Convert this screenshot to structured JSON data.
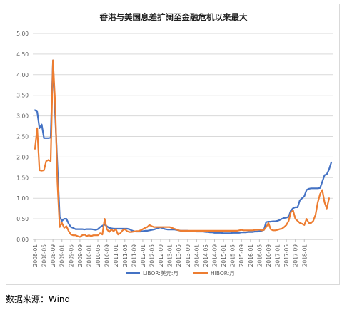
{
  "chart_data": {
    "type": "line",
    "title": "香港与美国息差扩阔至金融危机以来最大",
    "xlabel": "",
    "ylabel": "",
    "ylim": [
      0,
      5
    ],
    "yticks": [
      "0.00",
      "0.50",
      "1.00",
      "1.50",
      "2.00",
      "2.50",
      "3.00",
      "3.50",
      "4.00",
      "4.50",
      "5.00"
    ],
    "xticks": [
      "2008-01",
      "2008-05",
      "2008-09",
      "2009-01",
      "2009-05",
      "2009-09",
      "2010-01",
      "2010-05",
      "2010-09",
      "2011-01",
      "2011-05",
      "2011-09",
      "2012-01",
      "2012-05",
      "2012-09",
      "2013-01",
      "2013-05",
      "2013-09",
      "2014-01",
      "2014-05",
      "2014-09",
      "2015-01",
      "2015-05",
      "2015-09",
      "2016-01",
      "2016-05",
      "2016-09",
      "2017-01",
      "2017-05",
      "2017-09",
      "2018-01"
    ],
    "grid": "horizontal",
    "legend": "bottom",
    "series": [
      {
        "name": "LIBOR:美元:月",
        "color": "#4472c4",
        "values": [
          3.14,
          3.1,
          2.7,
          2.79,
          2.46,
          2.46,
          2.46,
          2.47,
          4.35,
          3.0,
          1.8,
          0.55,
          0.45,
          0.5,
          0.5,
          0.38,
          0.3,
          0.28,
          0.25,
          0.25,
          0.25,
          0.25,
          0.24,
          0.25,
          0.25,
          0.25,
          0.24,
          0.23,
          0.25,
          0.3,
          0.33,
          0.36,
          0.32,
          0.28,
          0.27,
          0.26,
          0.26,
          0.26,
          0.26,
          0.26,
          0.26,
          0.26,
          0.25,
          0.22,
          0.2,
          0.19,
          0.19,
          0.19,
          0.2,
          0.21,
          0.21,
          0.22,
          0.23,
          0.24,
          0.26,
          0.28,
          0.29,
          0.27,
          0.25,
          0.24,
          0.24,
          0.24,
          0.24,
          0.23,
          0.22,
          0.21,
          0.21,
          0.21,
          0.21,
          0.2,
          0.2,
          0.2,
          0.19,
          0.19,
          0.19,
          0.19,
          0.18,
          0.18,
          0.17,
          0.17,
          0.16,
          0.16,
          0.16,
          0.16,
          0.15,
          0.15,
          0.15,
          0.15,
          0.16,
          0.16,
          0.16,
          0.16,
          0.17,
          0.17,
          0.17,
          0.18,
          0.18,
          0.18,
          0.19,
          0.19,
          0.2,
          0.21,
          0.23,
          0.42,
          0.43,
          0.43,
          0.44,
          0.44,
          0.45,
          0.47,
          0.5,
          0.52,
          0.53,
          0.55,
          0.7,
          0.76,
          0.78,
          0.78,
          0.95,
          1.0,
          1.05,
          1.2,
          1.23,
          1.24,
          1.24,
          1.24,
          1.24,
          1.25,
          1.4,
          1.56,
          1.58,
          1.7,
          1.87
        ]
      },
      {
        "name": "HIBOR:月",
        "color": "#ed7d31",
        "values": [
          2.2,
          2.7,
          1.68,
          1.67,
          1.68,
          1.9,
          1.93,
          1.9,
          4.35,
          3.3,
          1.4,
          0.3,
          0.4,
          0.28,
          0.32,
          0.2,
          0.12,
          0.1,
          0.1,
          0.08,
          0.06,
          0.1,
          0.12,
          0.08,
          0.1,
          0.08,
          0.1,
          0.1,
          0.1,
          0.15,
          0.12,
          0.5,
          0.25,
          0.18,
          0.24,
          0.2,
          0.25,
          0.12,
          0.15,
          0.22,
          0.25,
          0.2,
          0.18,
          0.18,
          0.19,
          0.2,
          0.2,
          0.22,
          0.25,
          0.28,
          0.3,
          0.35,
          0.32,
          0.3,
          0.3,
          0.3,
          0.3,
          0.3,
          0.3,
          0.3,
          0.3,
          0.28,
          0.26,
          0.24,
          0.22,
          0.21,
          0.21,
          0.21,
          0.21,
          0.21,
          0.21,
          0.21,
          0.21,
          0.21,
          0.21,
          0.21,
          0.21,
          0.21,
          0.21,
          0.21,
          0.21,
          0.21,
          0.21,
          0.21,
          0.21,
          0.21,
          0.21,
          0.21,
          0.21,
          0.21,
          0.21,
          0.22,
          0.23,
          0.22,
          0.22,
          0.22,
          0.22,
          0.22,
          0.23,
          0.23,
          0.24,
          0.22,
          0.23,
          0.3,
          0.4,
          0.25,
          0.22,
          0.22,
          0.23,
          0.25,
          0.26,
          0.3,
          0.35,
          0.45,
          0.66,
          0.7,
          0.5,
          0.45,
          0.4,
          0.38,
          0.35,
          0.5,
          0.4,
          0.4,
          0.45,
          0.6,
          0.9,
          1.1,
          1.2,
          0.9,
          0.75,
          1.0
        ]
      }
    ]
  },
  "footer": {
    "source": "数据来源：Wind"
  }
}
